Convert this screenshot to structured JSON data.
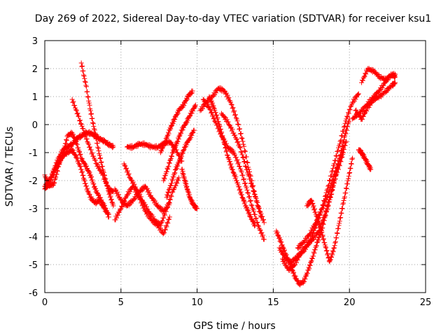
{
  "chart_data": {
    "type": "scatter",
    "title": "Day 269 of 2022, Sidereal Day-to-day VTEC variation (SDTVAR) for receiver ksu1",
    "xlabel": "GPS time / hours",
    "ylabel": "SDTVAR / TECUs",
    "xlim": [
      0,
      25
    ],
    "ylim": [
      -6,
      3
    ],
    "xticks": [
      "0",
      "5",
      "10",
      "15",
      "20",
      "25"
    ],
    "yticks": [
      "-6",
      "-5",
      "-4",
      "-3",
      "-2",
      "-1",
      "0",
      "1",
      "2",
      "3"
    ],
    "xtick_values": [
      0,
      5,
      10,
      15,
      20,
      25
    ],
    "ytick_values": [
      -6,
      -5,
      -4,
      -3,
      -2,
      -1,
      0,
      1,
      2,
      3
    ],
    "grid": true,
    "marker": "plus",
    "color": "#ff0000",
    "series": [
      {
        "x": [
          0.0,
          0.3,
          0.6,
          0.9,
          1.2,
          1.5,
          1.8,
          2.1,
          2.4,
          2.7,
          3.0,
          3.3,
          3.6,
          3.9,
          4.2,
          4.5
        ],
        "y": [
          -2.3,
          -2.1,
          -1.6,
          -1.2,
          -0.9,
          -0.8,
          -0.7,
          -0.5,
          -0.4,
          -0.3,
          -0.3,
          -0.4,
          -0.5,
          -0.6,
          -0.7,
          -0.8
        ]
      },
      {
        "x": [
          0.0,
          0.3,
          0.6,
          0.9,
          1.2,
          1.5,
          1.8,
          2.1,
          2.4,
          2.7,
          3.0,
          3.3,
          3.6,
          3.9,
          4.2
        ],
        "y": [
          -1.8,
          -2.2,
          -2.1,
          -1.5,
          -1.0,
          -0.4,
          -0.3,
          -0.7,
          -1.2,
          -1.5,
          -1.8,
          -2.3,
          -2.6,
          -2.9,
          -3.3
        ]
      },
      {
        "x": [
          0.0,
          0.3,
          0.6,
          0.9,
          1.2,
          1.5,
          1.8,
          2.1,
          2.4,
          2.7,
          3.0,
          3.3,
          3.6,
          3.9,
          4.2
        ],
        "y": [
          -2.2,
          -2.0,
          -1.7,
          -1.4,
          -1.1,
          -1.0,
          -0.9,
          -1.2,
          -1.6,
          -2.2,
          -2.6,
          -2.8,
          -2.7,
          -3.0,
          -3.2
        ]
      },
      {
        "x": [
          1.8,
          2.2,
          2.6,
          3.0,
          3.4,
          3.8,
          4.2,
          4.5
        ],
        "y": [
          0.9,
          0.3,
          -0.3,
          -0.9,
          -1.4,
          -1.8,
          -2.3,
          -2.4
        ]
      },
      {
        "x": [
          2.4,
          2.7,
          3.0,
          3.3,
          3.6,
          3.9,
          4.2,
          4.5
        ],
        "y": [
          2.2,
          1.4,
          0.5,
          -0.3,
          -1.1,
          -1.8,
          -2.4,
          -2.9
        ]
      },
      {
        "x": [
          4.6,
          5.0,
          5.4,
          5.8,
          6.2,
          6.6,
          7.0,
          7.4,
          7.8,
          8.2
        ],
        "y": [
          -3.4,
          -3.0,
          -2.5,
          -2.2,
          -2.6,
          -3.1,
          -3.4,
          -3.6,
          -3.9,
          -3.3
        ]
      },
      {
        "x": [
          4.6,
          5.0,
          5.4,
          5.8,
          6.2,
          6.6,
          7.0,
          7.4,
          7.8,
          8.2
        ],
        "y": [
          -2.3,
          -2.7,
          -2.9,
          -2.7,
          -2.4,
          -2.2,
          -2.6,
          -2.9,
          -3.1,
          -2.8
        ]
      },
      {
        "x": [
          5.2,
          5.6,
          6.0,
          6.4,
          6.8,
          7.2,
          7.6,
          8.0,
          8.4,
          8.8
        ],
        "y": [
          -1.4,
          -1.9,
          -2.3,
          -2.7,
          -3.1,
          -3.4,
          -3.6,
          -3.0,
          -2.4,
          -1.9
        ]
      },
      {
        "x": [
          5.4,
          5.8,
          6.2,
          6.6,
          7.0,
          7.4,
          7.8,
          8.2,
          8.6,
          9.0
        ],
        "y": [
          -0.8,
          -0.8,
          -0.7,
          -0.7,
          -0.8,
          -0.8,
          -0.7,
          -0.6,
          -0.9,
          -1.3
        ]
      },
      {
        "x": [
          7.6,
          7.9,
          8.2,
          8.5,
          8.8,
          9.1,
          9.4,
          9.7
        ],
        "y": [
          -1.0,
          -0.6,
          -0.2,
          0.2,
          0.5,
          0.7,
          1.0,
          1.2
        ]
      },
      {
        "x": [
          7.8,
          8.1,
          8.4,
          8.7,
          9.0,
          9.3,
          9.6,
          9.9
        ],
        "y": [
          -2.0,
          -1.5,
          -1.0,
          -0.6,
          -0.2,
          0.1,
          0.4,
          0.7
        ]
      },
      {
        "x": [
          8.0,
          8.3,
          8.6,
          8.9,
          9.2,
          9.5,
          9.8
        ],
        "y": [
          -2.6,
          -2.1,
          -1.6,
          -1.2,
          -0.8,
          -0.5,
          -0.2
        ]
      },
      {
        "x": [
          9.0,
          9.2,
          9.4,
          9.6,
          9.8,
          10.0
        ],
        "y": [
          -1.6,
          -2.0,
          -2.4,
          -2.7,
          -2.9,
          -3.0
        ]
      },
      {
        "x": [
          10.2,
          10.6,
          11.0,
          11.4,
          11.8,
          12.2,
          12.6,
          13.0,
          13.4,
          13.8,
          14.2
        ],
        "y": [
          0.5,
          0.8,
          1.0,
          1.3,
          1.2,
          0.8,
          0.2,
          -0.6,
          -1.6,
          -2.5,
          -3.3
        ]
      },
      {
        "x": [
          10.4,
          10.8,
          11.2,
          11.6,
          12.0,
          12.4,
          12.8,
          13.2,
          13.6,
          14.0,
          14.4
        ],
        "y": [
          0.9,
          0.6,
          0.1,
          -0.4,
          -0.8,
          -1.0,
          -1.5,
          -2.2,
          -2.9,
          -3.6,
          -4.1
        ]
      },
      {
        "x": [
          10.8,
          11.1,
          11.4,
          11.7,
          12.0,
          12.3,
          12.6,
          12.9,
          13.2,
          13.5,
          13.8
        ],
        "y": [
          1.0,
          0.6,
          0.1,
          -0.5,
          -1.1,
          -1.6,
          -2.0,
          -2.5,
          -2.9,
          -3.3,
          -3.6
        ]
      },
      {
        "x": [
          11.6,
          12.0,
          12.4,
          12.8,
          13.2,
          13.6,
          14.0,
          14.4
        ],
        "y": [
          0.4,
          0.1,
          -0.3,
          -0.8,
          -1.5,
          -2.2,
          -2.9,
          -3.5
        ]
      },
      {
        "x": [
          15.2,
          15.5,
          15.8,
          16.1,
          16.4,
          16.7,
          17.0,
          17.3,
          17.6,
          17.9,
          18.2,
          18.5,
          18.8,
          19.1,
          19.4,
          19.7,
          20.0
        ],
        "y": [
          -3.8,
          -4.2,
          -4.6,
          -5.0,
          -5.4,
          -5.7,
          -5.6,
          -5.2,
          -4.7,
          -4.2,
          -3.7,
          -3.1,
          -2.5,
          -1.8,
          -1.1,
          -0.4,
          0.2
        ]
      },
      {
        "x": [
          15.4,
          15.8,
          16.2,
          16.6,
          17.0,
          17.4,
          17.8,
          18.2,
          18.6,
          19.0,
          19.4,
          19.8,
          20.2,
          20.6
        ],
        "y": [
          -4.4,
          -4.8,
          -4.9,
          -4.7,
          -4.5,
          -4.2,
          -3.6,
          -3.0,
          -2.2,
          -1.4,
          -0.6,
          0.2,
          0.8,
          1.1
        ]
      },
      {
        "x": [
          15.6,
          16.0,
          16.4,
          16.8,
          17.2,
          17.6,
          18.0,
          18.4,
          18.8,
          19.2,
          19.6
        ],
        "y": [
          -4.8,
          -5.2,
          -5.0,
          -4.6,
          -4.3,
          -4.1,
          -3.8,
          -3.2,
          -2.4,
          -1.7,
          -1.0
        ]
      },
      {
        "x": [
          16.6,
          17.0,
          17.4,
          17.8,
          18.2,
          18.6,
          19.0,
          19.4,
          19.8
        ],
        "y": [
          -4.4,
          -4.2,
          -3.9,
          -3.5,
          -3.0,
          -2.5,
          -1.8,
          -1.2,
          -0.6
        ]
      },
      {
        "x": [
          17.2,
          17.5,
          17.8,
          18.1,
          18.4,
          18.7,
          19.0,
          19.3,
          19.6,
          19.9,
          20.2
        ],
        "y": [
          -2.9,
          -2.7,
          -3.2,
          -3.7,
          -4.3,
          -4.9,
          -4.4,
          -3.6,
          -2.8,
          -2.0,
          -1.2
        ]
      },
      {
        "x": [
          20.6,
          20.8,
          21.0,
          21.2,
          21.4
        ],
        "y": [
          -0.9,
          -1.0,
          -1.2,
          -1.4,
          -1.6
        ]
      },
      {
        "x": [
          20.2,
          20.6,
          21.0,
          21.4,
          21.8,
          22.2,
          22.6,
          23.0
        ],
        "y": [
          0.2,
          0.4,
          0.6,
          0.9,
          1.1,
          1.4,
          1.7,
          1.8
        ]
      },
      {
        "x": [
          20.8,
          21.2,
          21.6,
          22.0,
          22.4,
          22.8,
          23.0
        ],
        "y": [
          1.5,
          2.0,
          1.9,
          1.7,
          1.6,
          1.8,
          1.7
        ]
      },
      {
        "x": [
          20.4,
          20.8,
          21.2,
          21.6,
          22.0,
          22.4,
          22.8,
          23.0
        ],
        "y": [
          0.5,
          0.2,
          0.6,
          0.9,
          1.0,
          1.2,
          1.4,
          1.5
        ]
      }
    ]
  }
}
